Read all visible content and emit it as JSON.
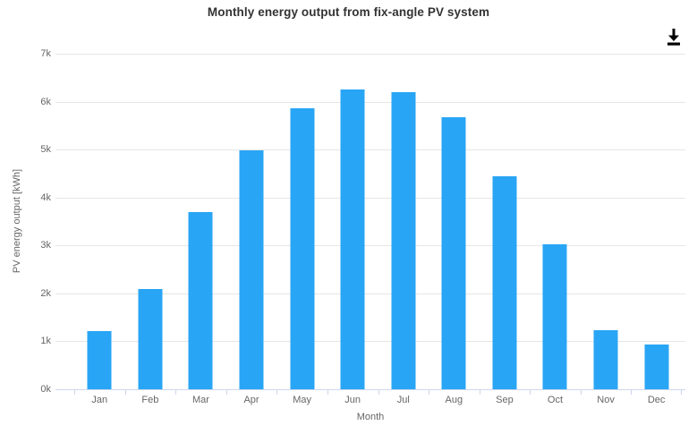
{
  "chart_data": {
    "type": "bar",
    "title": "Monthly energy output from fix-angle PV system",
    "categories": [
      "Jan",
      "Feb",
      "Mar",
      "Apr",
      "May",
      "Jun",
      "Jul",
      "Aug",
      "Sep",
      "Oct",
      "Nov",
      "Dec"
    ],
    "values": [
      1220,
      2090,
      3700,
      4980,
      5870,
      6250,
      6200,
      5670,
      4450,
      3030,
      1240,
      930
    ],
    "xlabel": "Month",
    "ylabel": "PV energy output [kWh]",
    "ylim": [
      0,
      7000
    ],
    "ytick_labels": [
      "0k",
      "1k",
      "2k",
      "3k",
      "4k",
      "5k",
      "6k",
      "7k"
    ],
    "grid": true,
    "legend": false
  },
  "icons": {
    "download": "download-icon"
  },
  "colors": {
    "bar": "#29a5f5",
    "grid": "#e6e6e6",
    "axis": "#ccd6eb",
    "tick_text": "#666666",
    "title_text": "#333333",
    "icon": "#000000"
  }
}
